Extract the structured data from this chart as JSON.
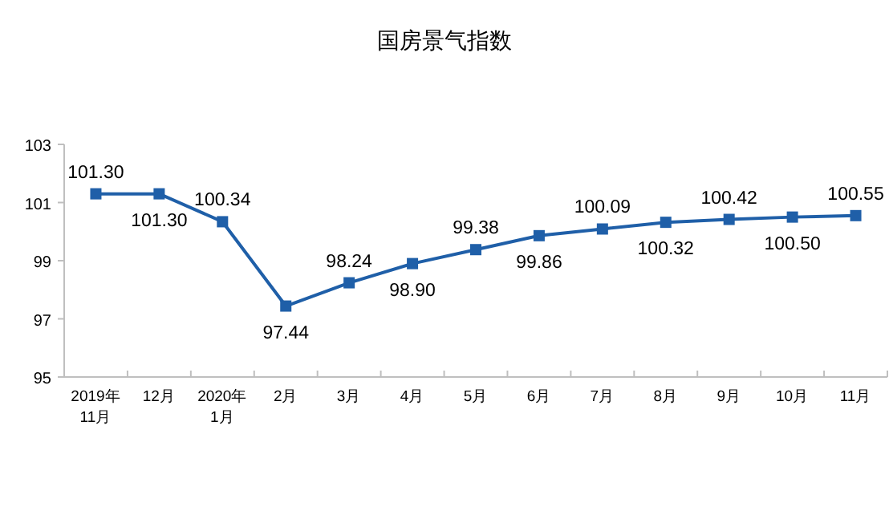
{
  "chart_data": {
    "type": "line",
    "title": "国房景气指数",
    "categories": [
      "2019年\n11月",
      "12月",
      "2020年\n1月",
      "2月",
      "3月",
      "4月",
      "5月",
      "6月",
      "7月",
      "8月",
      "9月",
      "10月",
      "11月"
    ],
    "series": [
      {
        "color": "#1f5fa8",
        "values": [
          101.3,
          101.3,
          100.34,
          97.44,
          98.24,
          98.9,
          99.38,
          99.86,
          100.09,
          100.32,
          100.42,
          100.5,
          100.55
        ]
      }
    ],
    "value_labels": [
      "101.30",
      "101.30",
      "100.34",
      "97.44",
      "98.24",
      "98.90",
      "99.38",
      "99.86",
      "100.09",
      "100.32",
      "100.42",
      "100.50",
      "100.55"
    ],
    "ylim": [
      95,
      103
    ],
    "yticks": [
      95,
      97,
      99,
      101,
      103
    ],
    "marker": "square",
    "line_style": "solid",
    "grid": false
  }
}
